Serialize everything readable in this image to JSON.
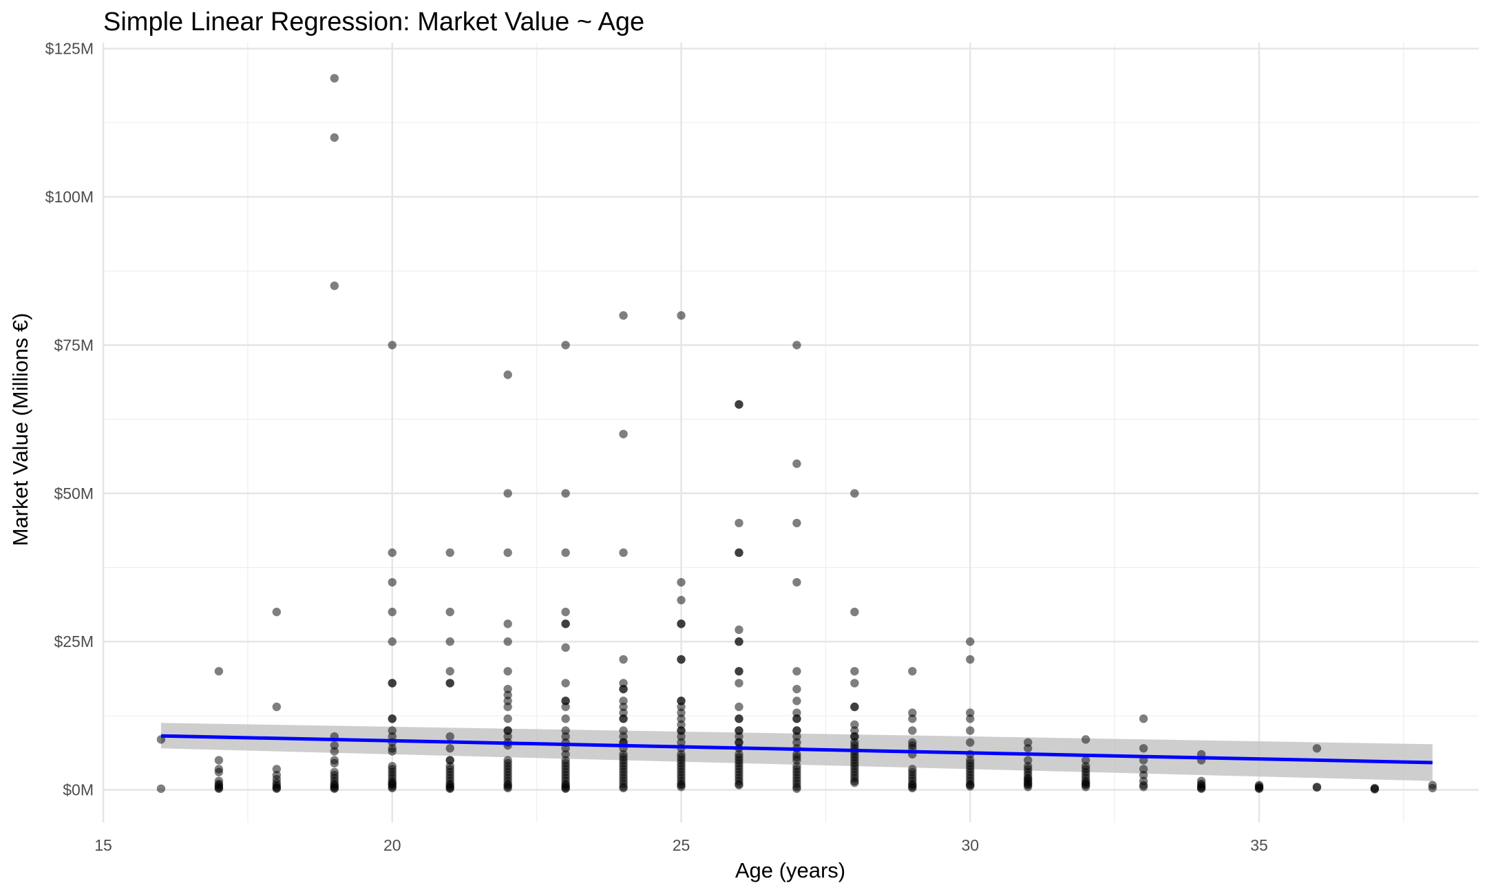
{
  "chart_data": {
    "type": "scatter",
    "title": "Simple Linear Regression: Market Value ~ Age",
    "xlabel": "Age (years)",
    "ylabel": "Market Value (Millions €)",
    "xlim": [
      15,
      38.8
    ],
    "ylim": [
      -5.5,
      126
    ],
    "x_ticks": [
      15,
      20,
      25,
      30,
      35
    ],
    "x_tick_labels": [
      "15",
      "20",
      "25",
      "30",
      "35"
    ],
    "y_ticks": [
      0,
      25,
      50,
      75,
      100,
      125
    ],
    "y_tick_labels": [
      "$0M",
      "$25M",
      "$50M",
      "$75M",
      "$100M",
      "$125M"
    ],
    "grid": true,
    "legend": "none",
    "points": [
      [
        16,
        8.5
      ],
      [
        16,
        0.2
      ],
      [
        17,
        20
      ],
      [
        17,
        5
      ],
      [
        17,
        3.5
      ],
      [
        17,
        3
      ],
      [
        17,
        1.5
      ],
      [
        17,
        1
      ],
      [
        17,
        0.8
      ],
      [
        17,
        0.5
      ],
      [
        17,
        0.3
      ],
      [
        17,
        0.2
      ],
      [
        18,
        30
      ],
      [
        18,
        14
      ],
      [
        18,
        3.5
      ],
      [
        18,
        2.5
      ],
      [
        18,
        1.8
      ],
      [
        18,
        1.2
      ],
      [
        18,
        0.8
      ],
      [
        18,
        0.5
      ],
      [
        18,
        0.3
      ],
      [
        18,
        0.2
      ],
      [
        19,
        120
      ],
      [
        19,
        110
      ],
      [
        19,
        85
      ],
      [
        19,
        9
      ],
      [
        19,
        7.5
      ],
      [
        19,
        6.5
      ],
      [
        19,
        5
      ],
      [
        19,
        4.5
      ],
      [
        19,
        3
      ],
      [
        19,
        2.5
      ],
      [
        19,
        2
      ],
      [
        19,
        1.5
      ],
      [
        19,
        1
      ],
      [
        19,
        0.8
      ],
      [
        19,
        0.5
      ],
      [
        19,
        0.3
      ],
      [
        19,
        0.2
      ],
      [
        20,
        75
      ],
      [
        20,
        40
      ],
      [
        20,
        35
      ],
      [
        20,
        30
      ],
      [
        20,
        25
      ],
      [
        20,
        18
      ],
      [
        20,
        18
      ],
      [
        20,
        12
      ],
      [
        20,
        12
      ],
      [
        20,
        10
      ],
      [
        20,
        9
      ],
      [
        20,
        8
      ],
      [
        20,
        7
      ],
      [
        20,
        6.5
      ],
      [
        20,
        4
      ],
      [
        20,
        3.5
      ],
      [
        20,
        3
      ],
      [
        20,
        2.5
      ],
      [
        20,
        2
      ],
      [
        20,
        1.5
      ],
      [
        20,
        1.2
      ],
      [
        20,
        1
      ],
      [
        20,
        0.8
      ],
      [
        20,
        0.5
      ],
      [
        20,
        0.3
      ],
      [
        21,
        40
      ],
      [
        21,
        30
      ],
      [
        21,
        25
      ],
      [
        21,
        20
      ],
      [
        21,
        18
      ],
      [
        21,
        18
      ],
      [
        21,
        9
      ],
      [
        21,
        7
      ],
      [
        21,
        5
      ],
      [
        21,
        5
      ],
      [
        21,
        4
      ],
      [
        21,
        3.5
      ],
      [
        21,
        3
      ],
      [
        21,
        2.5
      ],
      [
        21,
        2
      ],
      [
        21,
        1.5
      ],
      [
        21,
        1
      ],
      [
        21,
        0.8
      ],
      [
        21,
        0.5
      ],
      [
        21,
        0.3
      ],
      [
        21,
        0.2
      ],
      [
        22,
        70
      ],
      [
        22,
        50
      ],
      [
        22,
        40
      ],
      [
        22,
        28
      ],
      [
        22,
        25
      ],
      [
        22,
        20
      ],
      [
        22,
        17
      ],
      [
        22,
        16
      ],
      [
        22,
        15
      ],
      [
        22,
        14
      ],
      [
        22,
        12
      ],
      [
        22,
        10
      ],
      [
        22,
        10
      ],
      [
        22,
        9
      ],
      [
        22,
        8
      ],
      [
        22,
        7.5
      ],
      [
        22,
        5
      ],
      [
        22,
        4.5
      ],
      [
        22,
        4
      ],
      [
        22,
        3.5
      ],
      [
        22,
        3
      ],
      [
        22,
        2.5
      ],
      [
        22,
        2
      ],
      [
        22,
        1.5
      ],
      [
        22,
        1
      ],
      [
        22,
        0.8
      ],
      [
        22,
        0.5
      ],
      [
        22,
        0.3
      ],
      [
        23,
        75
      ],
      [
        23,
        50
      ],
      [
        23,
        40
      ],
      [
        23,
        30
      ],
      [
        23,
        28
      ],
      [
        23,
        28
      ],
      [
        23,
        24
      ],
      [
        23,
        18
      ],
      [
        23,
        15
      ],
      [
        23,
        15
      ],
      [
        23,
        14
      ],
      [
        23,
        12
      ],
      [
        23,
        10
      ],
      [
        23,
        9
      ],
      [
        23,
        8
      ],
      [
        23,
        7
      ],
      [
        23,
        6
      ],
      [
        23,
        5
      ],
      [
        23,
        4.5
      ],
      [
        23,
        4
      ],
      [
        23,
        3.5
      ],
      [
        23,
        3
      ],
      [
        23,
        2.5
      ],
      [
        23,
        2
      ],
      [
        23,
        1.5
      ],
      [
        23,
        1
      ],
      [
        23,
        0.8
      ],
      [
        23,
        0.5
      ],
      [
        23,
        0.3
      ],
      [
        23,
        0.2
      ],
      [
        24,
        80
      ],
      [
        24,
        60
      ],
      [
        24,
        40
      ],
      [
        24,
        22
      ],
      [
        24,
        18
      ],
      [
        24,
        17
      ],
      [
        24,
        17
      ],
      [
        24,
        15
      ],
      [
        24,
        14
      ],
      [
        24,
        13
      ],
      [
        24,
        12
      ],
      [
        24,
        12
      ],
      [
        24,
        10
      ],
      [
        24,
        9
      ],
      [
        24,
        8
      ],
      [
        24,
        8
      ],
      [
        24,
        7
      ],
      [
        24,
        6
      ],
      [
        24,
        5.5
      ],
      [
        24,
        5
      ],
      [
        24,
        4.5
      ],
      [
        24,
        4
      ],
      [
        24,
        3.5
      ],
      [
        24,
        3
      ],
      [
        24,
        2.5
      ],
      [
        24,
        2
      ],
      [
        24,
        1.5
      ],
      [
        24,
        1
      ],
      [
        24,
        0.5
      ],
      [
        24,
        0.3
      ],
      [
        25,
        80
      ],
      [
        25,
        35
      ],
      [
        25,
        32
      ],
      [
        25,
        28
      ],
      [
        25,
        28
      ],
      [
        25,
        22
      ],
      [
        25,
        22
      ],
      [
        25,
        15
      ],
      [
        25,
        15
      ],
      [
        25,
        14
      ],
      [
        25,
        13
      ],
      [
        25,
        12
      ],
      [
        25,
        11
      ],
      [
        25,
        10
      ],
      [
        25,
        10
      ],
      [
        25,
        9
      ],
      [
        25,
        8
      ],
      [
        25,
        7
      ],
      [
        25,
        6
      ],
      [
        25,
        5.5
      ],
      [
        25,
        5
      ],
      [
        25,
        4.5
      ],
      [
        25,
        4
      ],
      [
        25,
        3.5
      ],
      [
        25,
        3
      ],
      [
        25,
        2.5
      ],
      [
        25,
        2
      ],
      [
        25,
        1.5
      ],
      [
        25,
        1
      ],
      [
        25,
        0.8
      ],
      [
        25,
        0.5
      ],
      [
        26,
        65
      ],
      [
        26,
        65
      ],
      [
        26,
        45
      ],
      [
        26,
        40
      ],
      [
        26,
        40
      ],
      [
        26,
        27
      ],
      [
        26,
        25
      ],
      [
        26,
        25
      ],
      [
        26,
        20
      ],
      [
        26,
        20
      ],
      [
        26,
        18
      ],
      [
        26,
        14
      ],
      [
        26,
        12
      ],
      [
        26,
        12
      ],
      [
        26,
        10
      ],
      [
        26,
        10
      ],
      [
        26,
        9
      ],
      [
        26,
        8
      ],
      [
        26,
        8
      ],
      [
        26,
        7
      ],
      [
        26,
        6
      ],
      [
        26,
        5.5
      ],
      [
        26,
        5
      ],
      [
        26,
        4.5
      ],
      [
        26,
        4
      ],
      [
        26,
        3.5
      ],
      [
        26,
        3
      ],
      [
        26,
        2.5
      ],
      [
        26,
        2
      ],
      [
        26,
        1.5
      ],
      [
        26,
        1
      ],
      [
        26,
        0.8
      ],
      [
        27,
        75
      ],
      [
        27,
        55
      ],
      [
        27,
        45
      ],
      [
        27,
        35
      ],
      [
        27,
        20
      ],
      [
        27,
        17
      ],
      [
        27,
        15
      ],
      [
        27,
        13
      ],
      [
        27,
        12
      ],
      [
        27,
        12
      ],
      [
        27,
        10
      ],
      [
        27,
        10
      ],
      [
        27,
        9
      ],
      [
        27,
        8
      ],
      [
        27,
        7
      ],
      [
        27,
        6
      ],
      [
        27,
        5.5
      ],
      [
        27,
        5
      ],
      [
        27,
        4
      ],
      [
        27,
        3.5
      ],
      [
        27,
        3
      ],
      [
        27,
        2.5
      ],
      [
        27,
        2
      ],
      [
        27,
        1.5
      ],
      [
        27,
        1
      ],
      [
        27,
        0.5
      ],
      [
        27,
        0.2
      ],
      [
        28,
        50
      ],
      [
        28,
        30
      ],
      [
        28,
        20
      ],
      [
        28,
        18
      ],
      [
        28,
        14
      ],
      [
        28,
        14
      ],
      [
        28,
        11
      ],
      [
        28,
        10
      ],
      [
        28,
        9
      ],
      [
        28,
        9
      ],
      [
        28,
        8
      ],
      [
        28,
        7.5
      ],
      [
        28,
        7
      ],
      [
        28,
        6.5
      ],
      [
        28,
        6
      ],
      [
        28,
        5.5
      ],
      [
        28,
        5
      ],
      [
        28,
        4.5
      ],
      [
        28,
        4
      ],
      [
        28,
        3.5
      ],
      [
        28,
        3
      ],
      [
        28,
        2.5
      ],
      [
        28,
        2
      ],
      [
        28,
        1.5
      ],
      [
        28,
        1.2
      ],
      [
        29,
        20
      ],
      [
        29,
        13
      ],
      [
        29,
        12
      ],
      [
        29,
        10
      ],
      [
        29,
        8
      ],
      [
        29,
        7.5
      ],
      [
        29,
        7
      ],
      [
        29,
        6
      ],
      [
        29,
        3.5
      ],
      [
        29,
        3
      ],
      [
        29,
        2.5
      ],
      [
        29,
        2
      ],
      [
        29,
        1.5
      ],
      [
        29,
        1
      ],
      [
        29,
        0.8
      ],
      [
        29,
        0.5
      ],
      [
        29,
        0.3
      ],
      [
        30,
        25
      ],
      [
        30,
        22
      ],
      [
        30,
        13
      ],
      [
        30,
        12
      ],
      [
        30,
        10
      ],
      [
        30,
        8
      ],
      [
        30,
        6
      ],
      [
        30,
        5
      ],
      [
        30,
        4.5
      ],
      [
        30,
        4
      ],
      [
        30,
        3.5
      ],
      [
        30,
        3
      ],
      [
        30,
        2.5
      ],
      [
        30,
        2
      ],
      [
        30,
        1.5
      ],
      [
        30,
        1
      ],
      [
        30,
        0.8
      ],
      [
        30,
        0.6
      ],
      [
        31,
        8
      ],
      [
        31,
        7
      ],
      [
        31,
        5
      ],
      [
        31,
        4
      ],
      [
        31,
        3.5
      ],
      [
        31,
        3
      ],
      [
        31,
        2.5
      ],
      [
        31,
        2
      ],
      [
        31,
        1.8
      ],
      [
        31,
        1.5
      ],
      [
        31,
        1.2
      ],
      [
        31,
        1
      ],
      [
        31,
        0.8
      ],
      [
        31,
        0.5
      ],
      [
        32,
        8.5
      ],
      [
        32,
        5
      ],
      [
        32,
        4
      ],
      [
        32,
        3.5
      ],
      [
        32,
        3
      ],
      [
        32,
        2.5
      ],
      [
        32,
        2
      ],
      [
        32,
        1.5
      ],
      [
        32,
        1.2
      ],
      [
        32,
        1
      ],
      [
        32,
        0.8
      ],
      [
        32,
        0.5
      ],
      [
        33,
        12
      ],
      [
        33,
        7
      ],
      [
        33,
        5
      ],
      [
        33,
        3.5
      ],
      [
        33,
        2.5
      ],
      [
        33,
        1.5
      ],
      [
        33,
        0.8
      ],
      [
        33,
        0.5
      ],
      [
        34,
        6
      ],
      [
        34,
        5
      ],
      [
        34,
        1.5
      ],
      [
        34,
        1
      ],
      [
        34,
        0.8
      ],
      [
        34,
        0.5
      ],
      [
        34,
        0.3
      ],
      [
        34,
        0.2
      ],
      [
        35,
        0.8
      ],
      [
        35,
        0.6
      ],
      [
        35,
        0.4
      ],
      [
        35,
        0.3
      ],
      [
        35,
        0.2
      ],
      [
        36,
        7
      ],
      [
        36,
        0.5
      ],
      [
        36,
        0.4
      ],
      [
        37,
        0.3
      ],
      [
        37,
        0.2
      ],
      [
        37,
        0.1
      ],
      [
        38,
        0.8
      ],
      [
        38,
        0.3
      ]
    ],
    "regression": {
      "x": [
        16,
        38
      ],
      "y": [
        9.1,
        4.6
      ],
      "ci_lower": [
        7,
        1.5
      ],
      "ci_upper": [
        11.3,
        7.7
      ]
    },
    "colors": {
      "points": "#000000",
      "regression_line": "#0000ff",
      "confidence_band": "#bdbdbd"
    }
  }
}
